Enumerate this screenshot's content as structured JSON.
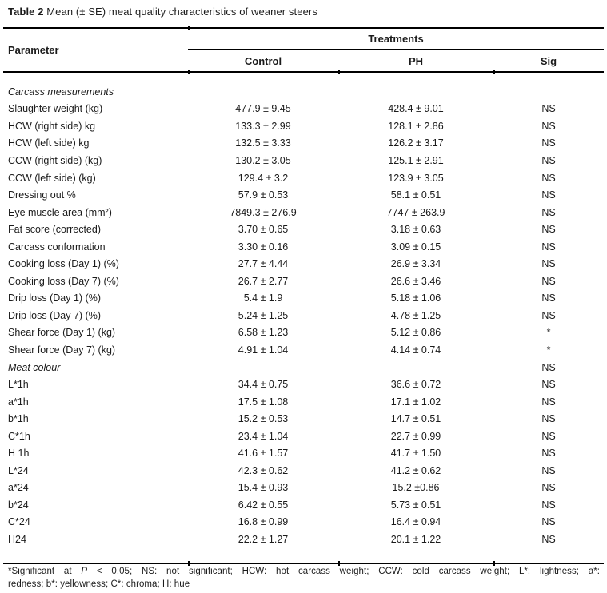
{
  "title": {
    "label": "Table 2",
    "text": " Mean (± SE) meat quality characteristics of weaner steers"
  },
  "table": {
    "header": {
      "parameter": "Parameter",
      "treatments": "Treatments",
      "columns": [
        "Control",
        "PH",
        "Sig"
      ]
    },
    "rows": [
      {
        "param": "Carcass measurements",
        "italic": true,
        "control": "",
        "ph": "",
        "sig": ""
      },
      {
        "param": "Slaughter weight (kg)",
        "control": "477.9 ± 9.45",
        "ph": "428.4 ± 9.01",
        "sig": "NS"
      },
      {
        "param": "HCW (right side) kg",
        "control": "133.3 ± 2.99",
        "ph": "128.1 ± 2.86",
        "sig": "NS"
      },
      {
        "param": "HCW (left side) kg",
        "control": "132.5 ± 3.33",
        "ph": "126.2 ± 3.17",
        "sig": "NS"
      },
      {
        "param": "CCW (right side) (kg)",
        "control": "130.2 ± 3.05",
        "ph": "125.1 ± 2.91",
        "sig": "NS"
      },
      {
        "param": "CCW (left side) (kg)",
        "control": "129.4 ± 3.2",
        "ph": "123.9 ± 3.05",
        "sig": "NS"
      },
      {
        "param": "Dressing out %",
        "control": "57.9 ± 0.53",
        "ph": "58.1 ± 0.51",
        "sig": "NS"
      },
      {
        "param": "Eye muscle area (mm²)",
        "control": "7849.3 ± 276.9",
        "ph": "7747 ± 263.9",
        "sig": "NS"
      },
      {
        "param": "Fat score (corrected)",
        "control": "3.70 ± 0.65",
        "ph": "3.18 ± 0.63",
        "sig": "NS"
      },
      {
        "param": "Carcass conformation",
        "control": "3.30 ± 0.16",
        "ph": "3.09 ± 0.15",
        "sig": "NS"
      },
      {
        "param": "Cooking loss (Day 1) (%)",
        "control": "27.7 ± 4.44",
        "ph": "26.9 ± 3.34",
        "sig": "NS"
      },
      {
        "param": "Cooking loss (Day 7) (%)",
        "control": "26.7 ± 2.77",
        "ph": "26.6 ± 3.46",
        "sig": "NS"
      },
      {
        "param": "Drip loss (Day 1) (%)",
        "control": "5.4 ± 1.9",
        "ph": "5.18 ± 1.06",
        "sig": "NS"
      },
      {
        "param": "Drip loss (Day 7) (%)",
        "control": "5.24 ± 1.25",
        "ph": "4.78 ± 1.25",
        "sig": "NS"
      },
      {
        "param": "Shear force (Day 1) (kg)",
        "control": "6.58 ± 1.23",
        "ph": "5.12 ± 0.86",
        "sig": "*"
      },
      {
        "param": "Shear force (Day 7) (kg)",
        "control": "4.91 ± 1.04",
        "ph": "4.14 ± 0.74",
        "sig": "*"
      },
      {
        "param": "Meat colour",
        "italic": true,
        "control": "",
        "ph": "",
        "sig": "NS"
      },
      {
        "param": "L*1h",
        "control": "34.4 ± 0.75",
        "ph": "36.6 ± 0.72",
        "sig": "NS"
      },
      {
        "param": "a*1h",
        "control": "17.5 ± 1.08",
        "ph": "17.1 ± 1.02",
        "sig": "NS"
      },
      {
        "param": "b*1h",
        "control": "15.2 ± 0.53",
        "ph": "14.7 ± 0.51",
        "sig": "NS"
      },
      {
        "param": "C*1h",
        "control": "23.4 ± 1.04",
        "ph": "22.7 ± 0.99",
        "sig": "NS"
      },
      {
        "param": "H 1h",
        "control": "41.6 ± 1.57",
        "ph": "41.7 ± 1.50",
        "sig": "NS"
      },
      {
        "param": "L*24",
        "control": "42.3 ± 0.62",
        "ph": "41.2 ± 0.62",
        "sig": "NS"
      },
      {
        "param": "a*24",
        "control": "15.4 ± 0.93",
        "ph": "15.2 ±0.86",
        "sig": "NS"
      },
      {
        "param": "b*24",
        "control": "6.42 ± 0.55",
        "ph": "5.73 ± 0.51",
        "sig": "NS"
      },
      {
        "param": "C*24",
        "control": "16.8 ± 0.99",
        "ph": "16.4 ± 0.94",
        "sig": "NS"
      },
      {
        "param": "H24",
        "control": "22.2 ± 1.27",
        "ph": "20.1 ± 1.22",
        "sig": "NS"
      }
    ]
  },
  "footnote": {
    "line1_prefix": "*Significant at ",
    "p": "P",
    "line1_suffix": " < 0.05; NS: not significant; HCW: hot carcass weight; CCW: cold carcass weight; L*: lightness; a*:",
    "line2": "redness; b*: yellowness; C*: chroma; H: hue"
  },
  "colors": {
    "text": "#1b1b1b",
    "rule": "#000000",
    "background": "#ffffff"
  }
}
